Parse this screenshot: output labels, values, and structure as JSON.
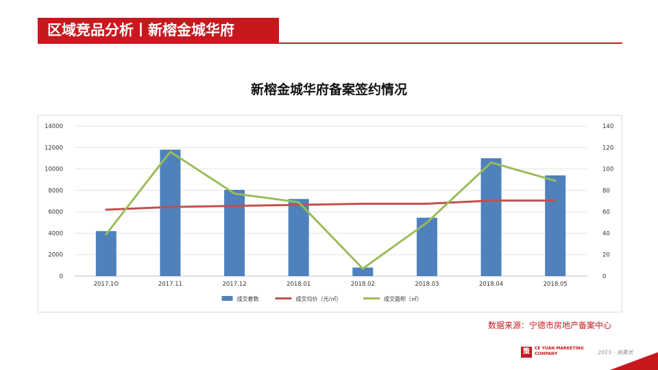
{
  "header": {
    "title": "区域竞品分析丨新榕金城华府"
  },
  "source_note": "数据来源：宁德市房地产备案中心",
  "logo": {
    "company": "CE YUAN MARKETING COMPANY",
    "signature": "2015 · 尚美长"
  },
  "colors": {
    "accent": "#c8181e",
    "bar": "#4f81bd",
    "line_price": "#c0504d",
    "line_area": "#9bbb59"
  },
  "chart_data": {
    "type": "bar",
    "title": "新榕金城华府备案签约情况",
    "categories": [
      "2017.1O",
      "2017.11",
      "2017.12",
      "2018.01",
      "2018.02",
      "2018.03",
      "2018.04",
      "2018.05"
    ],
    "y_ticks": [
      "0",
      "2000",
      "4000",
      "6000",
      "8000",
      "10000",
      "12000",
      "14000"
    ],
    "y2_ticks": [
      "0",
      "20",
      "40",
      "60",
      "80",
      "100",
      "120",
      "140"
    ],
    "ylim": [
      0,
      14000
    ],
    "y2lim": [
      0,
      140
    ],
    "grid": true,
    "legend_position": "bottom",
    "series": [
      {
        "name": "成交套数",
        "type": "bar",
        "axis": "left",
        "color": "#4f81bd",
        "values": [
          4200,
          11800,
          8050,
          7200,
          800,
          5450,
          11000,
          9400
        ]
      },
      {
        "name": "成交均价（元/㎡）",
        "type": "line",
        "axis": "left",
        "color": "#c0504d",
        "values": [
          6200,
          6450,
          6550,
          6650,
          6750,
          6750,
          7050,
          7050
        ]
      },
      {
        "name": "成交面积（㎡）",
        "type": "line",
        "axis": "right",
        "color": "#9bbb59",
        "values": [
          39,
          116,
          77,
          69,
          7,
          50,
          106,
          89
        ]
      }
    ]
  }
}
